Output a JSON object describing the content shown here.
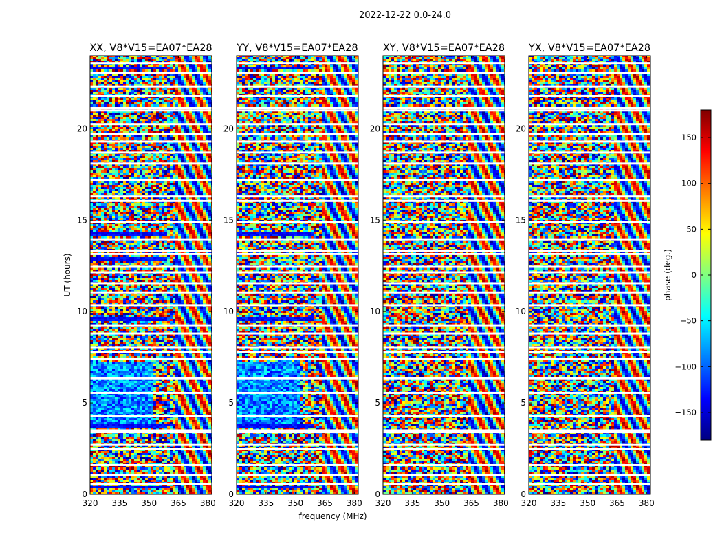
{
  "figure": {
    "suptitle": "2022-12-22 0.0-24.0",
    "ylabel": "UT (hours)",
    "xlabel": "frequency (MHz)"
  },
  "chart_data": [
    {
      "type": "heatmap",
      "title": "XX, V8*V15=EA07*EA28",
      "x_ticks": [
        "320",
        "335",
        "350",
        "365",
        "380"
      ],
      "x_tick_values": [
        320,
        335,
        350,
        365,
        380
      ],
      "y_ticks": [
        "0",
        "5",
        "10",
        "15",
        "20"
      ],
      "y_tick_values": [
        0,
        5,
        10,
        15,
        20
      ],
      "xlim": [
        320,
        382
      ],
      "ylim": [
        0,
        24
      ],
      "strong_blue_bands": [
        [
          0.3,
          0.5
        ],
        [
          3.6,
          3.8
        ],
        [
          9.5,
          9.7
        ],
        [
          12.8,
          13.0
        ],
        [
          14.1,
          14.3
        ],
        [
          23.2,
          23.4
        ]
      ],
      "light_blue_region": [
        3.8,
        7.2
      ]
    },
    {
      "type": "heatmap",
      "title": "YY, V8*V15=EA07*EA28",
      "x_ticks": [
        "320",
        "335",
        "350",
        "365",
        "380"
      ],
      "x_tick_values": [
        320,
        335,
        350,
        365,
        380
      ],
      "y_ticks": [
        "0",
        "5",
        "10",
        "15",
        "20"
      ],
      "y_tick_values": [
        0,
        5,
        10,
        15,
        20
      ],
      "xlim": [
        320,
        382
      ],
      "ylim": [
        0,
        24
      ],
      "strong_blue_bands": [
        [
          0.3,
          0.5
        ],
        [
          3.6,
          3.8
        ],
        [
          9.5,
          9.7
        ],
        [
          14.1,
          14.3
        ],
        [
          23.2,
          23.4
        ]
      ],
      "light_blue_region": [
        3.8,
        7.2
      ]
    },
    {
      "type": "heatmap",
      "title": "XY, V8*V15=EA07*EA28",
      "x_ticks": [
        "320",
        "335",
        "350",
        "365",
        "380"
      ],
      "x_tick_values": [
        320,
        335,
        350,
        365,
        380
      ],
      "y_ticks": [
        "0",
        "5",
        "10",
        "15",
        "20"
      ],
      "y_tick_values": [
        0,
        5,
        10,
        15,
        20
      ],
      "xlim": [
        320,
        382
      ],
      "ylim": [
        0,
        24
      ],
      "strong_blue_bands": [],
      "light_blue_region": null
    },
    {
      "type": "heatmap",
      "title": "YX, V8*V15=EA07*EA28",
      "x_ticks": [
        "320",
        "335",
        "350",
        "365",
        "380"
      ],
      "x_tick_values": [
        320,
        335,
        350,
        365,
        380
      ],
      "y_ticks": [
        "0",
        "5",
        "10",
        "15",
        "20"
      ],
      "y_tick_values": [
        0,
        5,
        10,
        15,
        20
      ],
      "xlim": [
        320,
        382
      ],
      "ylim": [
        0,
        24
      ],
      "strong_blue_bands": [],
      "light_blue_region": null
    }
  ],
  "colorbar": {
    "label": "phase (deg.)",
    "ticks": [
      "150",
      "100",
      "50",
      "0",
      "−50",
      "−100",
      "−150"
    ],
    "tick_values": [
      150,
      100,
      50,
      0,
      -50,
      -100,
      -150
    ],
    "range": [
      -180,
      180
    ],
    "colormap": "jet"
  },
  "flagged_hours": [
    0.55,
    1.05,
    1.6,
    2.5,
    2.7,
    3.4,
    3.5,
    4.3,
    5.55,
    6.35,
    7.4,
    7.8,
    8.05,
    8.8,
    9.25,
    10.35,
    11.05,
    11.55,
    12.15,
    12.45,
    13.15,
    13.3,
    13.95,
    14.9,
    16.05,
    16.3,
    17.2,
    18.1,
    18.7,
    19.3,
    19.7,
    20.25,
    21.0,
    21.15,
    21.8,
    22.3,
    23.05,
    23.6
  ]
}
